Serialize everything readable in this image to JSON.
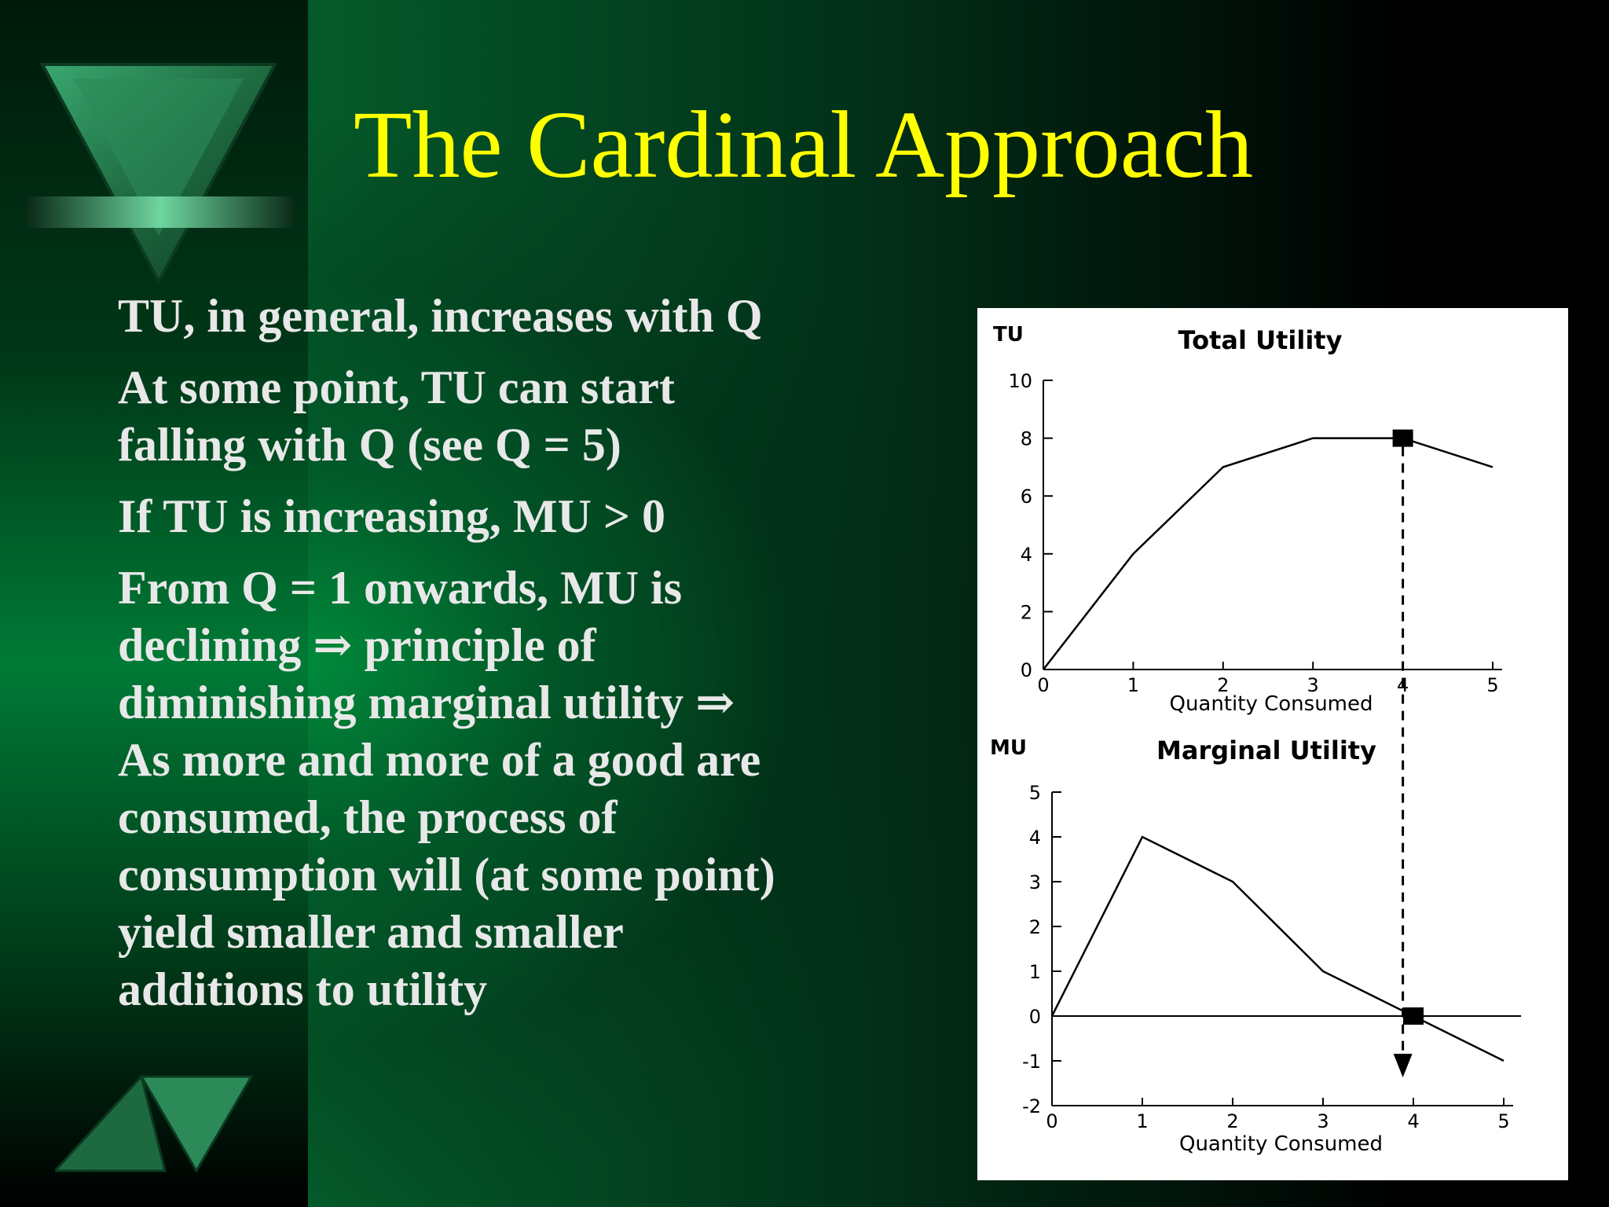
{
  "title": "The Cardinal Approach",
  "bullets": [
    "TU, in general, increases with Q",
    "At some point, TU can start falling with Q (see Q = 5)",
    "If TU is increasing, MU > 0",
    "From Q = 1 onwards, MU is declining ⇒ principle of diminishing marginal utility ⇒ As more and more of a good are consumed, the process of consumption will (at some point) yield smaller and smaller additions to utility"
  ],
  "colors": {
    "title": "#ffff00",
    "text": "#e8e8e8",
    "accent": "#007a36"
  },
  "chart_data": [
    {
      "type": "line",
      "title": "Total Utility",
      "ylabel": "TU",
      "xlabel": "Quantity Consumed",
      "x": [
        0,
        1,
        2,
        3,
        4,
        5
      ],
      "values": [
        0,
        4,
        7,
        8,
        8,
        7
      ],
      "xlim": [
        0,
        5
      ],
      "ylim": [
        0,
        10
      ],
      "xticks": [
        "0",
        "1",
        "2",
        "3",
        "4",
        "5"
      ],
      "yticks": [
        "0",
        "2",
        "4",
        "6",
        "8",
        "10"
      ],
      "marker": {
        "x": 4,
        "y": 8
      }
    },
    {
      "type": "line",
      "title": "Marginal Utility",
      "ylabel": "MU",
      "xlabel": "Quantity Consumed",
      "x": [
        0,
        1,
        2,
        3,
        4,
        5
      ],
      "values": [
        0,
        4,
        3,
        1,
        0,
        -1
      ],
      "xlim": [
        0,
        5
      ],
      "ylim": [
        -2,
        5
      ],
      "xticks": [
        "0",
        "1",
        "2",
        "3",
        "4",
        "5"
      ],
      "yticks": [
        "-2",
        "-1",
        "0",
        "1",
        "2",
        "3",
        "4",
        "5"
      ],
      "marker": {
        "x": 4,
        "y": 0
      }
    }
  ]
}
